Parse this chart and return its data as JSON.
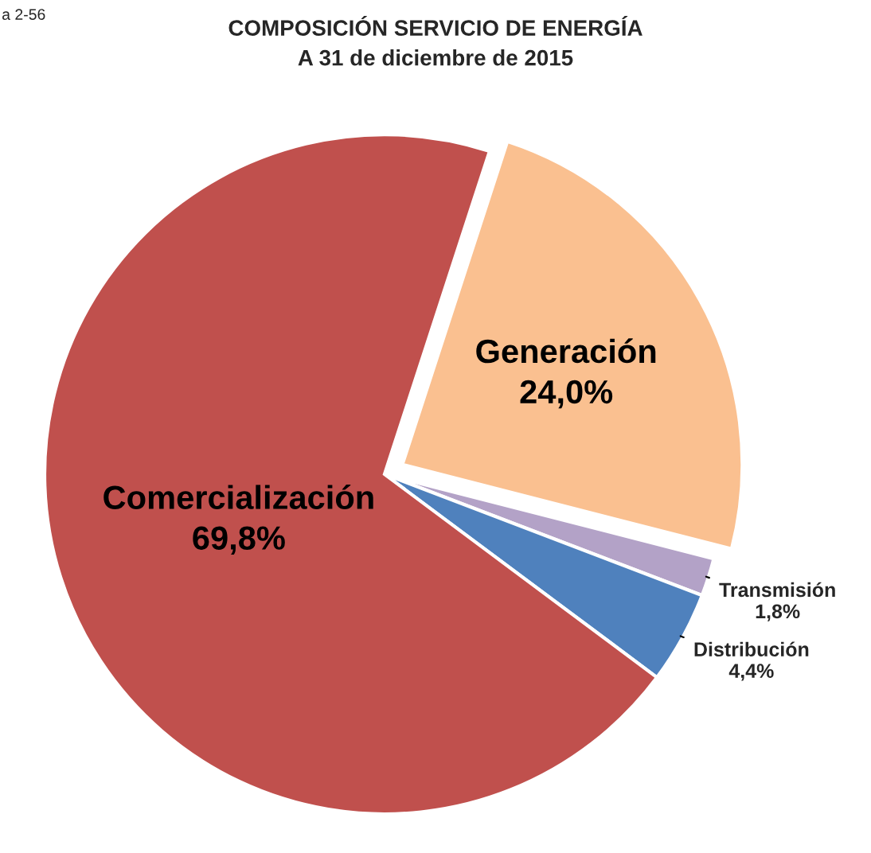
{
  "chart_data": {
    "type": "pie",
    "title": "COMPOSICIÓN SERVICIO DE ENERGÍA",
    "subtitle": "A 31 de diciembre de 2015",
    "categories": [
      "Generación",
      "Transmisión",
      "Distribución",
      "Comercialización"
    ],
    "values": [
      24.0,
      1.8,
      4.4,
      69.8
    ],
    "colors": [
      "#fac090",
      "#b3a2c7",
      "#4f81bd",
      "#c0504d"
    ],
    "value_labels": [
      "24,0%",
      "1,8%",
      "4,4%",
      "69,8%"
    ],
    "annotations": [
      "a 2-56"
    ],
    "legend": false
  }
}
